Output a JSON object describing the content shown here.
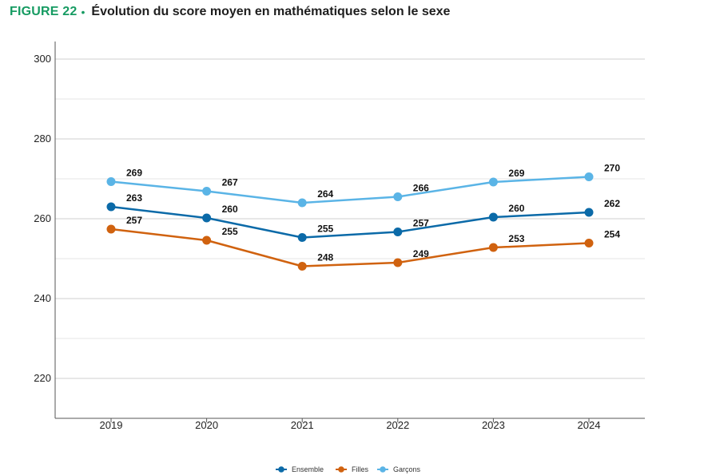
{
  "figure": {
    "label": "FIGURE 22",
    "separator": "•",
    "title": "Évolution du score moyen en mathématiques selon le sexe"
  },
  "chart_data": {
    "type": "line",
    "title": "Évolution du score moyen en mathématiques selon le sexe",
    "xlabel": "",
    "ylabel": "",
    "categories": [
      "2019",
      "2020",
      "2021",
      "2022",
      "2023",
      "2024"
    ],
    "ylim": [
      210,
      300
    ],
    "yticks": [
      220,
      240,
      260,
      280,
      300
    ],
    "grid": true,
    "legend_position": "bottom",
    "series": [
      {
        "name": "Ensemble",
        "color": "#0b6aa8",
        "values": [
          263,
          260,
          255,
          257,
          260,
          262
        ],
        "markers": [
          263,
          260.2,
          255.3,
          256.7,
          260.4,
          261.6
        ]
      },
      {
        "name": "Filles",
        "color": "#d0620f",
        "values": [
          257,
          255,
          248,
          249,
          253,
          254
        ],
        "markers": [
          257.4,
          254.6,
          248.1,
          249.0,
          252.8,
          253.9
        ]
      },
      {
        "name": "Garçons",
        "color": "#5ab4e6",
        "values": [
          269,
          267,
          264,
          266,
          269,
          270
        ],
        "markers": [
          269.3,
          266.9,
          264.0,
          265.5,
          269.2,
          270.5
        ]
      }
    ]
  }
}
